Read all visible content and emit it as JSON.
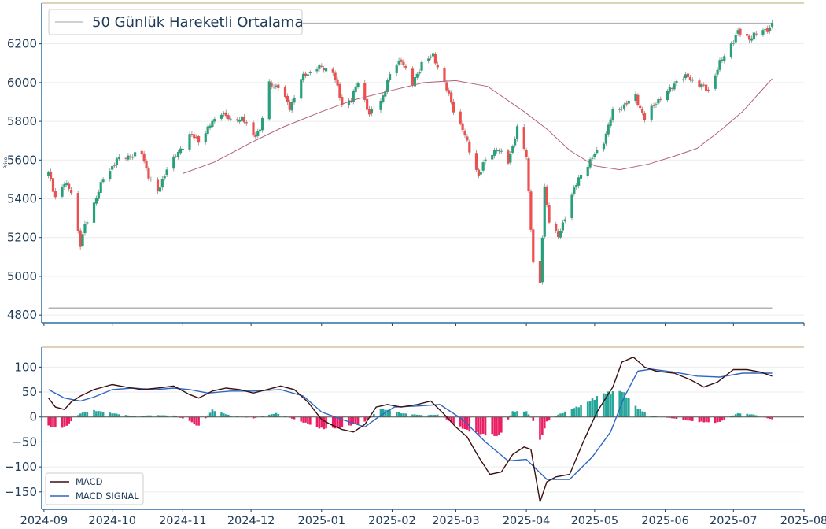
{
  "chart_data": [
    {
      "type": "candlestick",
      "ylabel": "Price",
      "ylim": [
        4760,
        6410
      ],
      "yticks": [
        4800,
        5000,
        5200,
        5400,
        5600,
        5800,
        6000,
        6200
      ],
      "xlim": [
        "2024-08-31",
        "2025-08-01"
      ],
      "legend": {
        "placement": "top-left",
        "label": "50 Günlük Hareketli Ortalama"
      },
      "colors": {
        "up": "#26a17b",
        "down": "#ef4f4f",
        "wick": "#8a8a8a",
        "ma": "#b3607a",
        "level": "#b3b3b3",
        "border": "#2a6fa8",
        "top_line": "#c8b98f"
      },
      "levels": [
        6305,
        4835
      ],
      "series": [
        {
          "name": "price",
          "anchors": [
            [
              "2024-09-03",
              5530
            ],
            [
              "2024-09-06",
              5410
            ],
            [
              "2024-09-10",
              5480
            ],
            [
              "2024-09-13",
              5440
            ],
            [
              "2024-09-17",
              5160
            ],
            [
              "2024-09-19",
              5260
            ],
            [
              "2024-09-23",
              5380
            ],
            [
              "2024-09-27",
              5500
            ],
            [
              "2024-10-03",
              5600
            ],
            [
              "2024-10-08",
              5620
            ],
            [
              "2024-10-14",
              5630
            ],
            [
              "2024-10-17",
              5520
            ],
            [
              "2024-10-21",
              5430
            ],
            [
              "2024-10-25",
              5560
            ],
            [
              "2024-10-29",
              5620
            ],
            [
              "2024-11-04",
              5730
            ],
            [
              "2024-11-08",
              5700
            ],
            [
              "2024-11-13",
              5780
            ],
            [
              "2024-11-18",
              5850
            ],
            [
              "2024-11-22",
              5800
            ],
            [
              "2024-11-27",
              5820
            ],
            [
              "2024-12-02",
              5720
            ],
            [
              "2024-12-05",
              5760
            ],
            [
              "2024-12-09",
              5990
            ],
            [
              "2024-12-13",
              5980
            ],
            [
              "2024-12-18",
              5870
            ],
            [
              "2024-12-23",
              6020
            ],
            [
              "2024-12-30",
              6080
            ],
            [
              "2025-01-06",
              6060
            ],
            [
              "2025-01-10",
              5880
            ],
            [
              "2025-01-14",
              5920
            ],
            [
              "2025-01-17",
              6000
            ],
            [
              "2025-01-22",
              5840
            ],
            [
              "2025-01-27",
              5900
            ],
            [
              "2025-01-31",
              6040
            ],
            [
              "2025-02-05",
              6120
            ],
            [
              "2025-02-10",
              5990
            ],
            [
              "2025-02-14",
              6100
            ],
            [
              "2025-02-19",
              6140
            ],
            [
              "2025-02-24",
              6000
            ],
            [
              "2025-02-28",
              5860
            ],
            [
              "2025-03-04",
              5760
            ],
            [
              "2025-03-07",
              5650
            ],
            [
              "2025-03-11",
              5520
            ],
            [
              "2025-03-14",
              5600
            ],
            [
              "2025-03-19",
              5660
            ],
            [
              "2025-03-24",
              5590
            ],
            [
              "2025-03-28",
              5760
            ],
            [
              "2025-04-01",
              5620
            ],
            [
              "2025-04-04",
              5070
            ],
            [
              "2025-04-07",
              4950
            ],
            [
              "2025-04-09",
              5460
            ],
            [
              "2025-04-11",
              5290
            ],
            [
              "2025-04-15",
              5200
            ],
            [
              "2025-04-21",
              5420
            ],
            [
              "2025-04-25",
              5530
            ],
            [
              "2025-04-30",
              5610
            ],
            [
              "2025-05-05",
              5700
            ],
            [
              "2025-05-09",
              5850
            ],
            [
              "2025-05-14",
              5880
            ],
            [
              "2025-05-19",
              5930
            ],
            [
              "2025-05-23",
              5810
            ],
            [
              "2025-05-28",
              5900
            ],
            [
              "2025-06-02",
              5950
            ],
            [
              "2025-06-06",
              6010
            ],
            [
              "2025-06-11",
              6030
            ],
            [
              "2025-06-16",
              5990
            ],
            [
              "2025-06-20",
              5960
            ],
            [
              "2025-06-25",
              6100
            ],
            [
              "2025-06-30",
              6200
            ],
            [
              "2025-07-03",
              6260
            ],
            [
              "2025-07-08",
              6230
            ],
            [
              "2025-07-14",
              6270
            ],
            [
              "2025-07-17",
              6280
            ],
            [
              "2025-07-18",
              6300
            ]
          ]
        },
        {
          "name": "50 Günlük Hareketli Ortalama",
          "points": [
            [
              "2024-11-01",
              5530
            ],
            [
              "2024-11-15",
              5590
            ],
            [
              "2024-12-01",
              5690
            ],
            [
              "2024-12-15",
              5770
            ],
            [
              "2025-01-01",
              5850
            ],
            [
              "2025-01-15",
              5910
            ],
            [
              "2025-02-01",
              5960
            ],
            [
              "2025-02-15",
              6000
            ],
            [
              "2025-03-01",
              6010
            ],
            [
              "2025-03-15",
              5980
            ],
            [
              "2025-03-31",
              5850
            ],
            [
              "2025-04-10",
              5760
            ],
            [
              "2025-04-20",
              5650
            ],
            [
              "2025-05-01",
              5570
            ],
            [
              "2025-05-12",
              5550
            ],
            [
              "2025-05-25",
              5580
            ],
            [
              "2025-06-05",
              5620
            ],
            [
              "2025-06-15",
              5660
            ],
            [
              "2025-06-25",
              5750
            ],
            [
              "2025-07-05",
              5850
            ],
            [
              "2025-07-18",
              6020
            ]
          ]
        }
      ]
    },
    {
      "type": "line+bar",
      "ylim": [
        -185,
        140
      ],
      "yticks": [
        -150,
        -100,
        -50,
        0,
        50,
        100
      ],
      "xticks": [
        "2024-09",
        "2024-10",
        "2024-11",
        "2024-12",
        "2025-01",
        "2025-02",
        "2025-03",
        "2025-04",
        "2025-05",
        "2025-06",
        "2025-07",
        "2025-08"
      ],
      "legend": {
        "placement": "lower-left"
      },
      "colors": {
        "macd": "#3a1010",
        "signal": "#2f66c4",
        "hist_pos": "#26a69a",
        "hist_neg": "#e91e63",
        "zero": "#555555"
      },
      "series": [
        {
          "name": "MACD",
          "points": [
            [
              "2024-09-03",
              38
            ],
            [
              "2024-09-06",
              20
            ],
            [
              "2024-09-10",
              15
            ],
            [
              "2024-09-13",
              30
            ],
            [
              "2024-09-17",
              42
            ],
            [
              "2024-09-23",
              55
            ],
            [
              "2024-10-01",
              65
            ],
            [
              "2024-10-07",
              60
            ],
            [
              "2024-10-14",
              55
            ],
            [
              "2024-10-21",
              58
            ],
            [
              "2024-10-28",
              62
            ],
            [
              "2024-11-04",
              45
            ],
            [
              "2024-11-08",
              38
            ],
            [
              "2024-11-14",
              52
            ],
            [
              "2024-11-20",
              58
            ],
            [
              "2024-11-26",
              55
            ],
            [
              "2024-12-02",
              48
            ],
            [
              "2024-12-08",
              55
            ],
            [
              "2024-12-14",
              62
            ],
            [
              "2024-12-20",
              55
            ],
            [
              "2024-12-26",
              30
            ],
            [
              "2025-01-01",
              -5
            ],
            [
              "2025-01-05",
              -15
            ],
            [
              "2025-01-10",
              -25
            ],
            [
              "2025-01-15",
              -30
            ],
            [
              "2025-01-20",
              -15
            ],
            [
              "2025-01-25",
              20
            ],
            [
              "2025-01-30",
              25
            ],
            [
              "2025-02-05",
              20
            ],
            [
              "2025-02-12",
              25
            ],
            [
              "2025-02-18",
              32
            ],
            [
              "2025-02-24",
              5
            ],
            [
              "2025-03-01",
              -20
            ],
            [
              "2025-03-06",
              -40
            ],
            [
              "2025-03-11",
              -80
            ],
            [
              "2025-03-16",
              -115
            ],
            [
              "2025-03-21",
              -110
            ],
            [
              "2025-03-26",
              -75
            ],
            [
              "2025-03-31",
              -60
            ],
            [
              "2025-04-03",
              -65
            ],
            [
              "2025-04-07",
              -170
            ],
            [
              "2025-04-10",
              -130
            ],
            [
              "2025-04-14",
              -120
            ],
            [
              "2025-04-20",
              -115
            ],
            [
              "2025-04-26",
              -50
            ],
            [
              "2025-05-02",
              10
            ],
            [
              "2025-05-09",
              60
            ],
            [
              "2025-05-13",
              110
            ],
            [
              "2025-05-18",
              120
            ],
            [
              "2025-05-23",
              100
            ],
            [
              "2025-05-28",
              92
            ],
            [
              "2025-06-05",
              88
            ],
            [
              "2025-06-12",
              75
            ],
            [
              "2025-06-18",
              60
            ],
            [
              "2025-06-24",
              70
            ],
            [
              "2025-07-01",
              95
            ],
            [
              "2025-07-07",
              95
            ],
            [
              "2025-07-13",
              90
            ],
            [
              "2025-07-18",
              82
            ]
          ]
        },
        {
          "name": "MACD SIGNAL",
          "points": [
            [
              "2024-09-03",
              55
            ],
            [
              "2024-09-10",
              38
            ],
            [
              "2024-09-17",
              32
            ],
            [
              "2024-09-23",
              40
            ],
            [
              "2024-10-01",
              55
            ],
            [
              "2024-10-10",
              58
            ],
            [
              "2024-10-20",
              55
            ],
            [
              "2024-10-28",
              58
            ],
            [
              "2024-11-04",
              55
            ],
            [
              "2024-11-12",
              48
            ],
            [
              "2024-11-22",
              52
            ],
            [
              "2024-12-02",
              52
            ],
            [
              "2024-12-14",
              55
            ],
            [
              "2024-12-24",
              42
            ],
            [
              "2025-01-01",
              10
            ],
            [
              "2025-01-10",
              -5
            ],
            [
              "2025-01-20",
              -20
            ],
            [
              "2025-01-26",
              0
            ],
            [
              "2025-02-02",
              20
            ],
            [
              "2025-02-12",
              22
            ],
            [
              "2025-02-22",
              25
            ],
            [
              "2025-03-04",
              -5
            ],
            [
              "2025-03-14",
              -50
            ],
            [
              "2025-03-24",
              -88
            ],
            [
              "2025-04-01",
              -85
            ],
            [
              "2025-04-10",
              -125
            ],
            [
              "2025-04-20",
              -125
            ],
            [
              "2025-04-30",
              -80
            ],
            [
              "2025-05-08",
              -30
            ],
            [
              "2025-05-14",
              40
            ],
            [
              "2025-05-20",
              92
            ],
            [
              "2025-05-26",
              96
            ],
            [
              "2025-06-05",
              90
            ],
            [
              "2025-06-15",
              82
            ],
            [
              "2025-06-25",
              80
            ],
            [
              "2025-07-05",
              88
            ],
            [
              "2025-07-18",
              88
            ]
          ]
        },
        {
          "name": "histogram",
          "points": [
            [
              "2024-09-03",
              -20
            ],
            [
              "2024-09-10",
              -22
            ],
            [
              "2024-09-17",
              8
            ],
            [
              "2024-09-23",
              14
            ],
            [
              "2024-10-01",
              8
            ],
            [
              "2024-10-10",
              2
            ],
            [
              "2024-10-20",
              4
            ],
            [
              "2024-10-28",
              3
            ],
            [
              "2024-11-04",
              -8
            ],
            [
              "2024-11-08",
              -20
            ],
            [
              "2024-11-14",
              15
            ],
            [
              "2024-11-22",
              3
            ],
            [
              "2024-12-02",
              -3
            ],
            [
              "2024-12-12",
              8
            ],
            [
              "2024-12-22",
              -8
            ],
            [
              "2025-01-01",
              -25
            ],
            [
              "2025-01-10",
              -22
            ],
            [
              "2025-01-20",
              -10
            ],
            [
              "2025-01-27",
              18
            ],
            [
              "2025-02-05",
              8
            ],
            [
              "2025-02-14",
              4
            ],
            [
              "2025-02-22",
              5
            ],
            [
              "2025-03-01",
              -18
            ],
            [
              "2025-03-10",
              -35
            ],
            [
              "2025-03-20",
              -40
            ],
            [
              "2025-03-26",
              12
            ],
            [
              "2025-04-01",
              12
            ],
            [
              "2025-04-04",
              -8
            ],
            [
              "2025-04-07",
              -50
            ],
            [
              "2025-04-10",
              -10
            ],
            [
              "2025-04-15",
              5
            ],
            [
              "2025-04-25",
              25
            ],
            [
              "2025-05-05",
              50
            ],
            [
              "2025-05-13",
              55
            ],
            [
              "2025-05-20",
              18
            ],
            [
              "2025-05-26",
              2
            ],
            [
              "2025-06-05",
              -3
            ],
            [
              "2025-06-15",
              -10
            ],
            [
              "2025-06-24",
              -12
            ],
            [
              "2025-07-03",
              8
            ],
            [
              "2025-07-10",
              5
            ],
            [
              "2025-07-18",
              -5
            ]
          ]
        }
      ]
    }
  ]
}
